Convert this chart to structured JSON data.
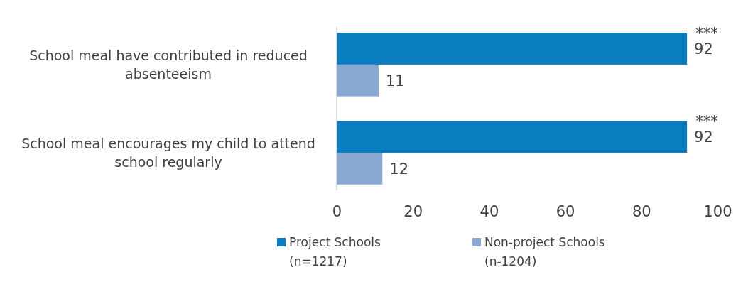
{
  "chart_data": {
    "type": "bar",
    "orientation": "horizontal",
    "categories": [
      "School meal have contributed in reduced absenteeism",
      "School meal encourages my child to attend school regularly"
    ],
    "series": [
      {
        "name": "Project Schools (n=1217)",
        "color": "#0a7cc0",
        "values": [
          92,
          92
        ]
      },
      {
        "name": "Non-project Schools (n-1204)",
        "color": "#88a9d3",
        "values": [
          11,
          12
        ]
      }
    ],
    "xlim": [
      0,
      100
    ],
    "xticks": [
      0,
      20,
      40,
      60,
      80,
      100
    ],
    "data_labels": true,
    "grid": false,
    "legend": "bottom",
    "annotations": [
      {
        "text": "***",
        "x": 92,
        "y": "School meal have contributed in reduced absenteeism"
      },
      {
        "text": "***",
        "x": 92,
        "y": "School meal encourages my child to attend school regularly"
      }
    ]
  }
}
